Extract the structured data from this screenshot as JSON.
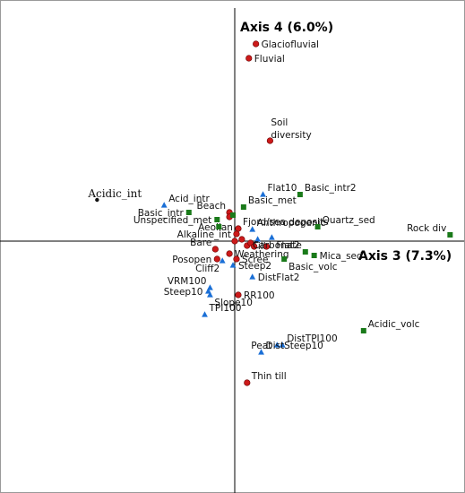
{
  "chart_data": {
    "type": "scatter",
    "title": "",
    "xlabel": "Axis 3 (7.3%)",
    "ylabel": "Axis 4 (6.0%)",
    "xlim": [
      -1.45,
      1.3
    ],
    "ylim": [
      -1.46,
      1.3
    ],
    "grid": false,
    "origin_lines": true,
    "series": [
      {
        "marker": "circle",
        "color": "#cc1a1a",
        "points": [
          {
            "label": "Glaciofluvial",
            "x": 0.12,
            "y": 1.1,
            "label_side": "right"
          },
          {
            "label": "Fluvial",
            "x": 0.08,
            "y": 1.02,
            "label_side": "right"
          },
          {
            "label": "Soil diversity",
            "x": 0.2,
            "y": 0.56,
            "label_side": "soil"
          },
          {
            "label": "Beach",
            "x": -0.03,
            "y": 0.16,
            "label_side": "left-up"
          },
          {
            "label": "",
            "x": -0.03,
            "y": 0.135
          },
          {
            "label": "Fjord/sea deposits",
            "x": 0.02,
            "y": 0.07,
            "label_side": "right-up"
          },
          {
            "label": "Aeolian",
            "x": 0.01,
            "y": 0.04,
            "label_side": "left-up"
          },
          {
            "label": "Alkaline_int",
            "x": 0.0,
            "y": 0.0,
            "label_side": "left-up"
          },
          {
            "label": "Till",
            "x": 0.07,
            "y": -0.025,
            "label_side": "right"
          },
          {
            "label": "",
            "x": 0.09,
            "y": -0.01
          },
          {
            "label": "",
            "x": 0.04,
            "y": 0.01
          },
          {
            "label": "",
            "x": 0.11,
            "y": -0.03
          },
          {
            "label": "",
            "x": 0.18,
            "y": -0.03
          },
          {
            "label": "Bare",
            "x": -0.11,
            "y": -0.045,
            "label_side": "left-up"
          },
          {
            "label": "Weathering",
            "x": -0.03,
            "y": -0.07,
            "label_side": "right"
          },
          {
            "label": "Posopen",
            "x": -0.1,
            "y": -0.1,
            "label_side": "left"
          },
          {
            "label": "Scree",
            "x": 0.01,
            "y": -0.1,
            "label_side": "right"
          },
          {
            "label": "RR100",
            "x": 0.02,
            "y": -0.3,
            "label_side": "right"
          },
          {
            "label": "Thin till",
            "x": 0.07,
            "y": -0.79,
            "label_side": "right-up"
          }
        ]
      },
      {
        "marker": "triangle",
        "color": "#1a6fd6",
        "points": [
          {
            "label": "Acid_intr",
            "x": -0.4,
            "y": 0.2,
            "label_side": "right-up"
          },
          {
            "label": "Flat10",
            "x": 0.16,
            "y": 0.26,
            "label_side": "right-up"
          },
          {
            "label": "Anthropogenic",
            "x": 0.1,
            "y": 0.065,
            "label_side": "right-up"
          },
          {
            "label": "Flat2",
            "x": 0.21,
            "y": 0.02,
            "label_side": "right-down"
          },
          {
            "label": "",
            "x": 0.13,
            "y": 0.01
          },
          {
            "label": "Cliff2",
            "x": -0.07,
            "y": -0.11,
            "label_side": "left-down"
          },
          {
            "label": "Steep2",
            "x": -0.01,
            "y": -0.135,
            "label_side": "right"
          },
          {
            "label": "DistFlat2",
            "x": 0.1,
            "y": -0.2,
            "label_side": "right"
          },
          {
            "label": "VRM100",
            "x": -0.14,
            "y": -0.26,
            "label_side": "left-up"
          },
          {
            "label": "Steep10",
            "x": -0.15,
            "y": -0.28,
            "label_side": "left"
          },
          {
            "label": "Slope10",
            "x": -0.14,
            "y": -0.3,
            "label_side": "right-down"
          },
          {
            "label": "TPI100",
            "x": -0.17,
            "y": -0.41,
            "label_side": "right-up"
          },
          {
            "label": "Peat",
            "x": 0.24,
            "y": -0.58,
            "label_side": "left"
          },
          {
            "label": "DistTPI100",
            "x": 0.27,
            "y": -0.58,
            "label_side": "right-up"
          },
          {
            "label": "DistSteep10",
            "x": 0.15,
            "y": -0.62,
            "label_side": "right-up"
          }
        ]
      },
      {
        "marker": "square",
        "color": "#1a7a1a",
        "points": [
          {
            "label": "Basic_intr2",
            "x": 0.37,
            "y": 0.26,
            "label_side": "right-up"
          },
          {
            "label": "Basic_intr",
            "x": -0.26,
            "y": 0.16,
            "label_side": "left"
          },
          {
            "label": "Unspecified_met",
            "x": -0.1,
            "y": 0.12,
            "label_side": "left"
          },
          {
            "label": "Basic_met",
            "x": 0.05,
            "y": 0.19,
            "label_side": "right-up"
          },
          {
            "label": "",
            "x": -0.01,
            "y": 0.145
          },
          {
            "label": "Quartz_sed",
            "x": 0.47,
            "y": 0.08,
            "label_side": "right-up"
          },
          {
            "label": "Rock div",
            "x": 1.22,
            "y": 0.035,
            "label_side": "left-up"
          },
          {
            "label": "",
            "x": -0.09,
            "y": 0.08
          },
          {
            "label": "Carbonate",
            "x": 0.4,
            "y": -0.06,
            "label_side": "left-up"
          },
          {
            "label": "Mica_sed",
            "x": 0.45,
            "y": -0.08,
            "label_side": "right"
          },
          {
            "label": "Basic_volc",
            "x": 0.28,
            "y": -0.1,
            "label_side": "right-down"
          },
          {
            "label": "Acidic_volc",
            "x": 0.73,
            "y": -0.5,
            "label_side": "right-up"
          }
        ]
      },
      {
        "marker": "dot",
        "color": "#111111",
        "points": [
          {
            "label": "Acidic_int",
            "x": -0.78,
            "y": 0.23,
            "label_side": "serif-up"
          }
        ]
      }
    ]
  }
}
